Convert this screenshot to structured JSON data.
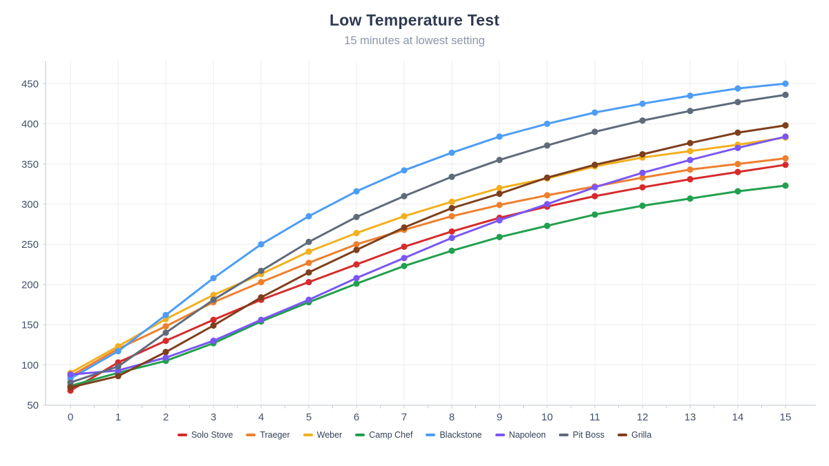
{
  "header": {
    "title": "Low Temperature Test",
    "subtitle": "15 minutes at lowest setting"
  },
  "style": {
    "grid_color": "#ECECF1",
    "axis_color": "#C9CFD7",
    "tick_label_color": "#44506A",
    "title_color": "#2F3A51",
    "subtitle_color": "#8B96A9",
    "legend_text_color": "#333E55"
  },
  "chart_data": {
    "type": "line",
    "title": "Low Temperature Test",
    "subtitle": "15 minutes at lowest setting",
    "xlabel": "",
    "ylabel": "",
    "x": [
      0,
      1,
      2,
      3,
      4,
      5,
      6,
      7,
      8,
      9,
      10,
      11,
      12,
      13,
      14,
      15
    ],
    "ylim": [
      50,
      450
    ],
    "y_ticks": [
      50,
      100,
      150,
      200,
      250,
      300,
      350,
      400,
      450
    ],
    "x_minor_tick_step": 0.5,
    "grid": true,
    "legend_position": "bottom",
    "marker": "circle",
    "series": [
      {
        "name": "Solo Stove",
        "color": "#D62B2B",
        "values": [
          68,
          103,
          130,
          156,
          181,
          203,
          225,
          247,
          266,
          283,
          297,
          310,
          321,
          331,
          340,
          349
        ]
      },
      {
        "name": "Traeger",
        "color": "#EE7F2D",
        "values": [
          86,
          120,
          148,
          178,
          203,
          227,
          250,
          268,
          285,
          299,
          311,
          322,
          333,
          343,
          350,
          357
        ]
      },
      {
        "name": "Weber",
        "color": "#F2B01E",
        "values": [
          90,
          123,
          157,
          187,
          213,
          241,
          264,
          285,
          303,
          320,
          332,
          347,
          358,
          366,
          374,
          383
        ]
      },
      {
        "name": "Camp Chef",
        "color": "#21A04E",
        "values": [
          74,
          90,
          105,
          127,
          154,
          178,
          201,
          223,
          242,
          259,
          273,
          287,
          298,
          307,
          316,
          323
        ]
      },
      {
        "name": "Blackstone",
        "color": "#4D9DF6",
        "values": [
          83,
          117,
          162,
          208,
          250,
          285,
          316,
          342,
          364,
          384,
          400,
          414,
          425,
          435,
          444,
          450
        ]
      },
      {
        "name": "Napoleon",
        "color": "#7A57F2",
        "values": [
          88,
          93,
          109,
          130,
          156,
          181,
          208,
          233,
          258,
          280,
          300,
          321,
          339,
          355,
          370,
          384
        ]
      },
      {
        "name": "Pit Boss",
        "color": "#5F6B7B",
        "values": [
          78,
          98,
          140,
          181,
          217,
          253,
          284,
          310,
          334,
          355,
          373,
          390,
          404,
          416,
          427,
          436
        ]
      },
      {
        "name": "Grilla",
        "color": "#7E3F1D",
        "values": [
          72,
          86,
          116,
          149,
          184,
          215,
          243,
          271,
          295,
          313,
          333,
          349,
          362,
          376,
          389,
          398
        ]
      }
    ]
  }
}
